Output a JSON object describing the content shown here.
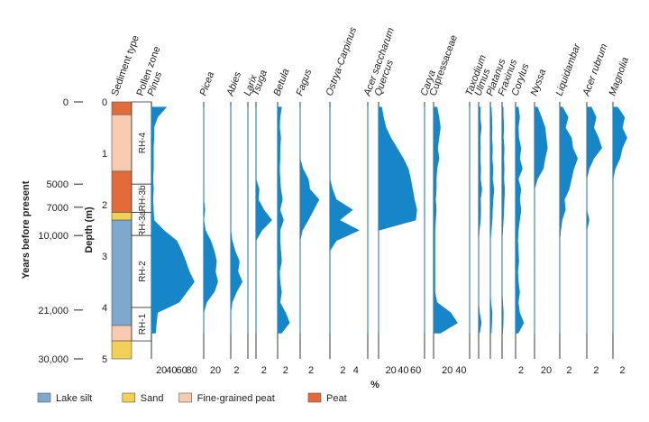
{
  "chart_data": {
    "type": "area",
    "title": "",
    "xlabel": "%",
    "depth_axis": {
      "label": "Depth (m)",
      "range": [
        0,
        5
      ],
      "ticks": [
        "0",
        "1",
        "2",
        "3",
        "4",
        "5"
      ]
    },
    "years_axis": {
      "label": "Years before present",
      "ticks": [
        {
          "label": "0",
          "depth": 0
        },
        {
          "label": "5000",
          "depth": 1.6
        },
        {
          "label": "7000",
          "depth": 2.05
        },
        {
          "label": "10,000",
          "depth": 2.6
        },
        {
          "label": "21,000",
          "depth": 4.05
        },
        {
          "label": "30,000",
          "depth": 5.0
        }
      ]
    },
    "column_labels": {
      "sediment": "Sediment type",
      "pollen_zone": "Pollen zone"
    },
    "sediment_layers": [
      {
        "type": "Peat",
        "top": 0.0,
        "bottom": 0.25
      },
      {
        "type": "Fine-grained peat",
        "top": 0.25,
        "bottom": 1.35
      },
      {
        "type": "Peat",
        "top": 1.35,
        "bottom": 2.15
      },
      {
        "type": "Sand",
        "top": 2.15,
        "bottom": 2.3
      },
      {
        "type": "Lake silt",
        "top": 2.3,
        "bottom": 4.35
      },
      {
        "type": "Fine-grained peat",
        "top": 4.35,
        "bottom": 4.65
      },
      {
        "type": "Sand",
        "top": 4.65,
        "bottom": 5.0
      }
    ],
    "pollen_zones": [
      {
        "name": "RH-4",
        "top": 0.0,
        "bottom": 1.6
      },
      {
        "name": "RH-3b",
        "top": 1.6,
        "bottom": 2.15
      },
      {
        "name": "RH-3a",
        "top": 2.15,
        "bottom": 2.6
      },
      {
        "name": "RH-2",
        "top": 2.6,
        "bottom": 4.0
      },
      {
        "name": "RH-1",
        "top": 4.0,
        "bottom": 4.65
      }
    ],
    "legend": [
      {
        "label": "Lake silt",
        "color": "#7fa9cc"
      },
      {
        "label": "Sand",
        "color": "#f2cf55"
      },
      {
        "label": "Fine-grained peat",
        "color": "#f8cbb0"
      },
      {
        "label": "Peat",
        "color": "#e36a3a"
      }
    ],
    "series_color": "#1686c8",
    "depths": [
      0.1,
      0.3,
      0.5,
      0.7,
      0.9,
      1.1,
      1.3,
      1.5,
      1.7,
      1.9,
      2.1,
      2.3,
      2.5,
      2.7,
      2.9,
      3.1,
      3.3,
      3.5,
      3.7,
      3.9,
      4.1,
      4.3,
      4.5
    ],
    "series": [
      {
        "name": "Pinus",
        "scale_ticks": [
          "20",
          "40",
          "60",
          "80"
        ],
        "max": 100,
        "values": [
          30,
          12,
          5,
          5,
          4,
          4,
          4,
          3,
          4,
          3,
          4,
          5,
          25,
          50,
          60,
          68,
          75,
          85,
          70,
          55,
          12,
          10,
          8
        ]
      },
      {
        "name": "Picea",
        "scale_ticks": [
          "20"
        ],
        "max": 40,
        "values": [
          0,
          0,
          0,
          0,
          0,
          0,
          0,
          0,
          0,
          0,
          2,
          0,
          3,
          12,
          18,
          22,
          20,
          24,
          18,
          5,
          0,
          0,
          0
        ]
      },
      {
        "name": "Abies",
        "scale_ticks": [
          "2"
        ],
        "max": 5,
        "values": [
          0,
          0,
          0,
          0,
          0,
          0,
          0,
          0,
          0,
          0,
          0,
          0,
          0,
          0.5,
          1.5,
          3.0,
          2.5,
          4.0,
          2.0,
          0.5,
          0,
          0,
          0
        ]
      },
      {
        "name": "Larix",
        "scale_ticks": [],
        "max": 5,
        "values": [
          0,
          0,
          0,
          0,
          0,
          0,
          0,
          0,
          0,
          0,
          0,
          0,
          0,
          0,
          0,
          0,
          0,
          0,
          0,
          0,
          0,
          0,
          0
        ]
      },
      {
        "name": "Tsuga",
        "scale_ticks": [
          "2"
        ],
        "max": 5,
        "values": [
          0,
          0,
          0,
          0,
          0,
          0,
          0,
          0,
          0.8,
          0.6,
          2.0,
          4.0,
          1.5,
          0,
          0,
          0,
          0,
          0,
          0,
          0,
          0,
          0,
          0
        ]
      },
      {
        "name": "Betula",
        "scale_ticks": [
          "2"
        ],
        "max": 5,
        "values": [
          1.0,
          0.6,
          0.5,
          0.8,
          0.6,
          0.6,
          0.5,
          0.6,
          0.8,
          1.2,
          0.6,
          1.5,
          0.6,
          0.6,
          0.8,
          1.0,
          0.5,
          0.6,
          1.0,
          0.6,
          2.0,
          3.0,
          1.0
        ]
      },
      {
        "name": "Fagus",
        "scale_ticks": [
          "2"
        ],
        "max": 5,
        "values": [
          0,
          0,
          0,
          0,
          0,
          0,
          0.5,
          1.5,
          1.8,
          3.5,
          2.5,
          1.5,
          0.4,
          0,
          0,
          0,
          0,
          0,
          0,
          0,
          0,
          0,
          0
        ]
      },
      {
        "name": "Ostrya-Carpinus",
        "scale_ticks": [
          "2",
          "4"
        ],
        "max": 5,
        "values": [
          0,
          0,
          0,
          0,
          0,
          0,
          0,
          0,
          0.4,
          1.0,
          3.5,
          1.5,
          4.5,
          1.0,
          0,
          0,
          0,
          0,
          0,
          0,
          0,
          0,
          0
        ]
      },
      {
        "name": "Acer saccharum",
        "scale_ticks": [],
        "max": 5,
        "values": [
          0,
          0,
          0,
          0,
          0,
          0,
          0,
          0,
          0,
          0,
          0,
          0,
          0,
          0,
          0,
          0,
          0,
          0,
          0,
          0,
          0,
          0,
          0
        ]
      },
      {
        "name": "Quercus",
        "scale_ticks": [
          "20",
          "40",
          "60"
        ],
        "max": 70,
        "values": [
          5,
          8,
          12,
          20,
          30,
          40,
          48,
          52,
          55,
          58,
          62,
          60,
          0,
          0,
          0,
          0,
          0,
          0,
          0,
          0,
          0,
          0,
          0
        ]
      },
      {
        "name": "Carya",
        "scale_ticks": [],
        "max": 5,
        "values": [
          0,
          0,
          0,
          0,
          0,
          0,
          0,
          0,
          0,
          0,
          0,
          0,
          0,
          0,
          0,
          0,
          0,
          0,
          0,
          0,
          0,
          0,
          0
        ]
      },
      {
        "name": "Cupressaceae",
        "scale_ticks": [
          "20",
          "40"
        ],
        "max": 50,
        "values": [
          5,
          8,
          10,
          8,
          6,
          8,
          5,
          4,
          4,
          3,
          4,
          3,
          2,
          2,
          2,
          2,
          2,
          2,
          2,
          5,
          25,
          35,
          10
        ]
      },
      {
        "name": "Taxodium",
        "scale_ticks": [],
        "max": 5,
        "values": [
          0,
          0,
          0,
          0,
          0,
          0,
          0,
          0,
          0,
          0,
          0,
          0,
          0,
          0,
          0,
          0,
          0,
          0,
          0,
          0,
          0,
          0,
          0
        ]
      },
      {
        "name": "Ulmus",
        "scale_ticks": [],
        "max": 5,
        "values": [
          1.0,
          0.8,
          1.5,
          0.8,
          1.0,
          0.8,
          1.2,
          1.0,
          1.8,
          1.0,
          1.2,
          1.0,
          0.4,
          0,
          0,
          0,
          0,
          0,
          0,
          0,
          0.5,
          1.5,
          0.5
        ]
      },
      {
        "name": "Platanus",
        "scale_ticks": [],
        "max": 5,
        "values": [
          0.5,
          0.8,
          1.0,
          0.8,
          1.2,
          1.0,
          1.5,
          1.2,
          2.0,
          1.5,
          1.2,
          1.0,
          0.5,
          0,
          0,
          0,
          0,
          0,
          0,
          0.3,
          1.0,
          0.8,
          0.5
        ]
      },
      {
        "name": "Fraxinus",
        "scale_ticks": [],
        "max": 5,
        "values": [
          0.5,
          0.6,
          0.8,
          0.6,
          1.0,
          0.8,
          1.0,
          0.8,
          1.2,
          1.0,
          0.8,
          0.6,
          0.3,
          0,
          0,
          0,
          0,
          0,
          0,
          0.3,
          0.6,
          0.5,
          0.3
        ]
      },
      {
        "name": "Corylus",
        "scale_ticks": [
          "2"
        ],
        "max": 6,
        "values": [
          1.0,
          1.5,
          1.0,
          1.2,
          2.0,
          1.5,
          2.5,
          1.0,
          2.0,
          1.5,
          2.0,
          1.5,
          1.0,
          0.8,
          1.0,
          1.2,
          0.8,
          1.0,
          1.5,
          1.0,
          1.5,
          3.0,
          1.0
        ]
      },
      {
        "name": "Nyssa",
        "scale_ticks": [
          "20"
        ],
        "max": 40,
        "values": [
          5,
          12,
          18,
          20,
          22,
          18,
          15,
          5,
          0,
          0,
          0,
          0,
          0,
          0,
          0,
          0,
          0,
          0,
          0,
          0,
          0,
          0,
          0
        ]
      },
      {
        "name": "Liquidambar",
        "scale_ticks": [
          "2"
        ],
        "max": 5,
        "values": [
          0.6,
          1.8,
          1.2,
          2.5,
          2.8,
          3.8,
          3.0,
          2.5,
          2.0,
          1.0,
          1.2,
          0.5,
          0.2,
          0,
          0,
          0,
          0,
          0,
          0,
          0,
          0,
          0,
          0
        ]
      },
      {
        "name": "Acer rubrum",
        "scale_ticks": [
          "2"
        ],
        "max": 5,
        "values": [
          1.0,
          2.0,
          1.5,
          2.5,
          3.2,
          1.5,
          0.5,
          0,
          0,
          0,
          0,
          0.5,
          0,
          0,
          0,
          0,
          0,
          0,
          0,
          0,
          0,
          0,
          0
        ]
      },
      {
        "name": "Magnolia",
        "scale_ticks": [
          "2"
        ],
        "max": 5,
        "values": [
          1.0,
          2.5,
          2.0,
          3.0,
          2.0,
          1.5,
          0.5,
          0,
          0,
          0,
          0,
          0,
          0,
          0,
          0,
          0,
          0,
          0,
          0,
          0,
          0,
          0,
          0
        ]
      }
    ]
  }
}
